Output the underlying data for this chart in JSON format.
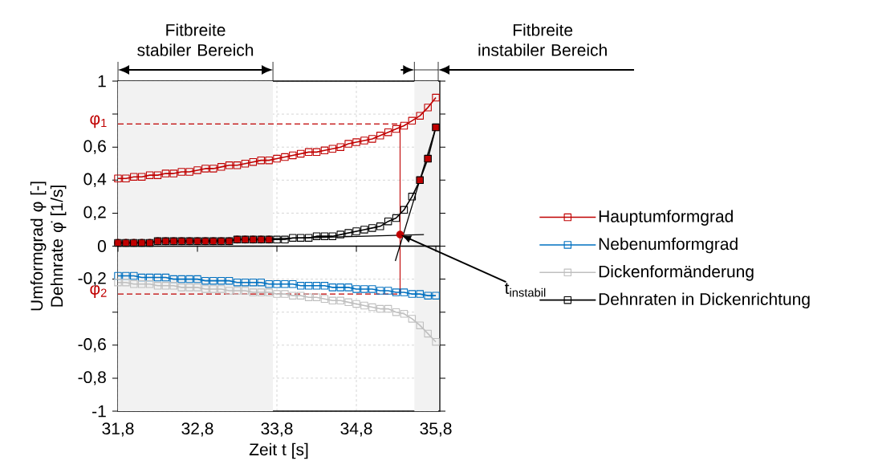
{
  "chart_data": {
    "type": "line",
    "x": [
      31.8,
      31.9,
      32.0,
      32.1,
      32.2,
      32.3,
      32.4,
      32.5,
      32.6,
      32.7,
      32.8,
      32.9,
      33.0,
      33.1,
      33.2,
      33.3,
      33.4,
      33.5,
      33.6,
      33.7,
      33.8,
      33.9,
      34.0,
      34.1,
      34.2,
      34.3,
      34.4,
      34.5,
      34.6,
      34.7,
      34.8,
      34.9,
      35.0,
      35.1,
      35.2,
      35.3,
      35.4,
      35.5,
      35.6,
      35.7,
      35.8
    ],
    "series": [
      {
        "name": "Hauptumformgrad",
        "color": "#c00000",
        "marker": "square",
        "values": [
          0.41,
          0.41,
          0.42,
          0.42,
          0.43,
          0.43,
          0.44,
          0.44,
          0.45,
          0.45,
          0.46,
          0.47,
          0.47,
          0.48,
          0.49,
          0.49,
          0.5,
          0.51,
          0.52,
          0.52,
          0.53,
          0.54,
          0.55,
          0.56,
          0.57,
          0.57,
          0.58,
          0.59,
          0.6,
          0.62,
          0.63,
          0.64,
          0.65,
          0.67,
          0.69,
          0.71,
          0.73,
          0.76,
          0.79,
          0.84,
          0.9
        ]
      },
      {
        "name": "Nebenumformgrad",
        "color": "#0070c0",
        "marker": "square",
        "values": [
          -0.18,
          -0.18,
          -0.18,
          -0.19,
          -0.19,
          -0.19,
          -0.19,
          -0.2,
          -0.2,
          -0.2,
          -0.2,
          -0.21,
          -0.21,
          -0.21,
          -0.21,
          -0.22,
          -0.22,
          -0.22,
          -0.22,
          -0.23,
          -0.23,
          -0.23,
          -0.23,
          -0.24,
          -0.24,
          -0.24,
          -0.24,
          -0.25,
          -0.25,
          -0.25,
          -0.26,
          -0.26,
          -0.26,
          -0.27,
          -0.27,
          -0.28,
          -0.28,
          -0.29,
          -0.29,
          -0.3,
          -0.3
        ]
      },
      {
        "name": "Dickenformänderung",
        "color": "#bfbfbf",
        "marker": "square",
        "values": [
          -0.22,
          -0.22,
          -0.23,
          -0.23,
          -0.23,
          -0.24,
          -0.24,
          -0.24,
          -0.25,
          -0.25,
          -0.25,
          -0.26,
          -0.26,
          -0.26,
          -0.27,
          -0.27,
          -0.27,
          -0.28,
          -0.28,
          -0.28,
          -0.29,
          -0.29,
          -0.3,
          -0.3,
          -0.31,
          -0.31,
          -0.32,
          -0.33,
          -0.33,
          -0.34,
          -0.35,
          -0.36,
          -0.37,
          -0.38,
          -0.38,
          -0.4,
          -0.41,
          -0.44,
          -0.48,
          -0.53,
          -0.58
        ]
      },
      {
        "name": "Dehnraten in Dickenrichtung",
        "color": "#000000",
        "marker": "square",
        "values": [
          0.02,
          0.02,
          0.02,
          0.02,
          0.02,
          0.03,
          0.03,
          0.03,
          0.03,
          0.03,
          0.03,
          0.03,
          0.03,
          0.03,
          0.03,
          0.04,
          0.04,
          0.04,
          0.04,
          0.04,
          0.04,
          0.04,
          0.05,
          0.05,
          0.05,
          0.06,
          0.06,
          0.06,
          0.07,
          0.08,
          0.09,
          0.1,
          0.11,
          0.12,
          0.15,
          0.17,
          0.22,
          0.3,
          0.4,
          0.53,
          0.72
        ]
      },
      {
        "type": "scatter",
        "color": "#c00000",
        "marker": "circle",
        "x": [
          31.8,
          31.9,
          32.0,
          32.1,
          32.2,
          32.3,
          32.4,
          32.5,
          32.6,
          32.7,
          32.8,
          32.9,
          33.0,
          33.1,
          33.2,
          33.3,
          33.4,
          33.5,
          33.6,
          33.7
        ],
        "values": [
          0.02,
          0.02,
          0.02,
          0.02,
          0.02,
          0.03,
          0.03,
          0.03,
          0.03,
          0.03,
          0.03,
          0.03,
          0.03,
          0.03,
          0.03,
          0.04,
          0.04,
          0.04,
          0.04,
          0.04
        ]
      },
      {
        "type": "scatter",
        "color": "#c00000",
        "marker": "square",
        "x": [
          35.6,
          35.7,
          35.8
        ],
        "values": [
          0.4,
          0.53,
          0.72
        ]
      },
      {
        "type": "line",
        "color": "#000000",
        "marker": "none",
        "x": [
          31.8,
          35.65
        ],
        "values": [
          0.02,
          0.07
        ]
      },
      {
        "type": "line",
        "color": "#000000",
        "marker": "none",
        "x": [
          35.29,
          35.8
        ],
        "values": [
          -0.09,
          0.72
        ]
      },
      {
        "type": "scatter",
        "color": "#c00000",
        "marker": "circle",
        "x": [
          35.35
        ],
        "values": [
          0.07
        ]
      }
    ],
    "xlim": [
      31.8,
      35.85
    ],
    "ylim": [
      -1,
      1
    ],
    "xticks": [
      {
        "value": 31.8,
        "label": "31,8"
      },
      {
        "value": 32.8,
        "label": "32,8"
      },
      {
        "value": 33.8,
        "label": "33,8"
      },
      {
        "value": 34.8,
        "label": "34,8"
      },
      {
        "value": 35.8,
        "label": "35,8"
      }
    ],
    "yticks": [
      {
        "value": -1,
        "label": "-1"
      },
      {
        "value": -0.8,
        "label": "-0,8"
      },
      {
        "value": -0.6,
        "label": "-0,6"
      },
      {
        "value": -0.4,
        "label": null
      },
      {
        "value": -0.2,
        "label": "-0,2"
      },
      0,
      {
        "value": 0.2,
        "label": "0,2"
      },
      {
        "value": 0.4,
        "label": "0,4"
      },
      {
        "value": 0.6,
        "label": "0,6"
      },
      {
        "value": 0.8,
        "label": null
      },
      1
    ],
    "xlabel": "Zeit t [s]",
    "ylabel": "Umformgrad φ [-] Dehnrate φ̇ [1/s]",
    "grid": true,
    "legend": "right",
    "bands": [
      {
        "axis": "x",
        "from": 31.8,
        "to": 33.75,
        "label": "Fitbreite stabiler Bereich",
        "color": "#f2f2f2"
      },
      {
        "axis": "x",
        "from": 35.53,
        "to": 35.83,
        "label": "Fitbreite instabiler Bereich",
        "color": "#f2f2f2"
      }
    ],
    "ref_lines": [
      {
        "axis": "y",
        "value": 0.74,
        "label": "φ$_{1}$",
        "color": "#c00000",
        "line_style": "dashed"
      },
      {
        "axis": "y",
        "value": -0.29,
        "label": "φ$_{2}$",
        "color": "#c00000",
        "line_style": "dashed"
      },
      {
        "axis": "x",
        "value": 35.35,
        "color": "#c00000",
        "line_style": "solid"
      }
    ],
    "annotations": [
      "t$_{instabil}$"
    ]
  }
}
